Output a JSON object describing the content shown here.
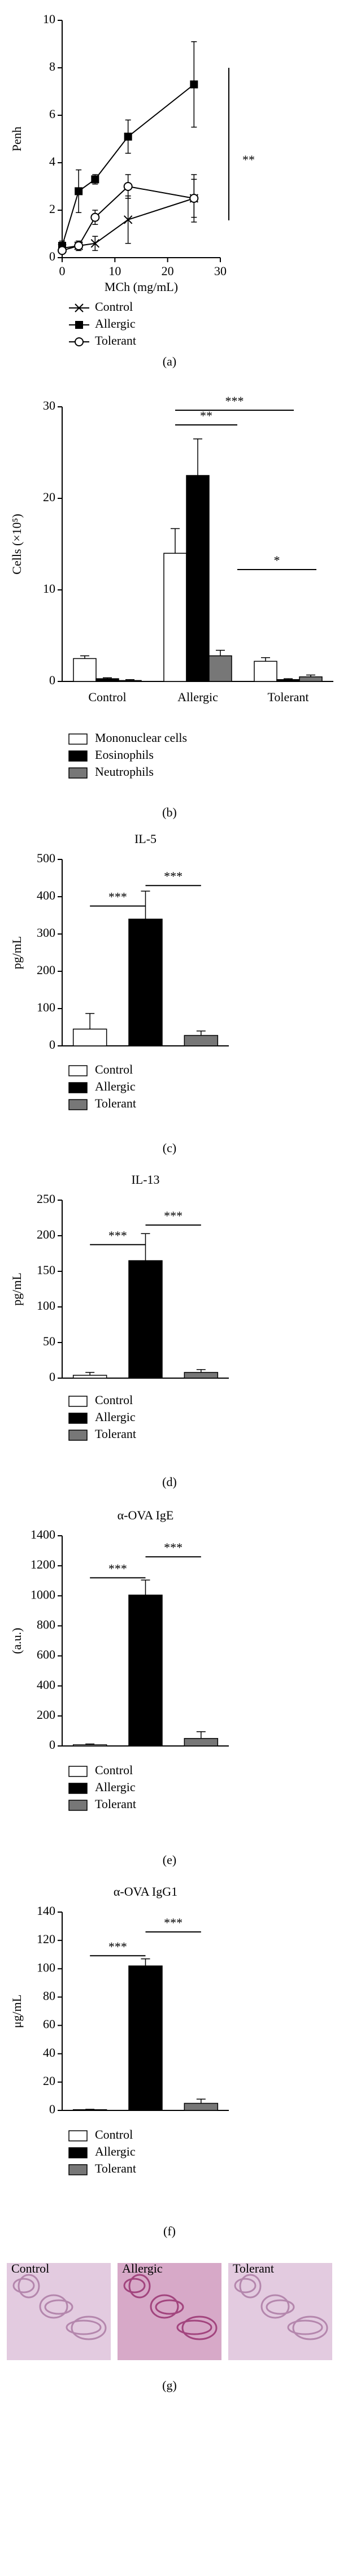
{
  "chart_data": [
    {
      "type": "line",
      "xlabel": "MCh (mg/mL)",
      "ylabel": "Penh",
      "xlim": [
        0,
        30
      ],
      "xticks": [
        0,
        10,
        20,
        30
      ],
      "ylim": [
        0,
        10
      ],
      "yticks": [
        0,
        2,
        4,
        6,
        8,
        10
      ],
      "x": [
        0,
        3.125,
        6.25,
        12.5,
        25
      ],
      "series": [
        {
          "name": "Control",
          "marker": "x",
          "color": "#000000",
          "values": [
            0.4,
            0.5,
            0.6,
            1.6,
            2.5
          ],
          "errors": [
            0.1,
            0.2,
            0.3,
            1.0,
            0.8
          ]
        },
        {
          "name": "Allergic",
          "marker": "square",
          "color": "#000000",
          "values": [
            0.5,
            2.8,
            3.3,
            5.1,
            7.3
          ],
          "errors": [
            0.2,
            0.9,
            0.2,
            0.7,
            1.8
          ]
        },
        {
          "name": "Tolerant",
          "marker": "circle",
          "color": "#000000",
          "values": [
            0.3,
            0.5,
            1.7,
            3.0,
            2.5
          ],
          "errors": [
            0.1,
            0.2,
            0.3,
            0.5,
            1.0
          ]
        }
      ],
      "annotations": [
        "**"
      ],
      "caption": "(a)"
    },
    {
      "type": "bar",
      "ylabel": "Cells (×10⁵)",
      "ylim": [
        0,
        30
      ],
      "yticks": [
        0,
        10,
        20,
        30
      ],
      "categories": [
        "Control",
        "Allergic",
        "Tolerant"
      ],
      "series": [
        {
          "name": "Mononuclear cells",
          "color": "#ffffff",
          "values": [
            2.5,
            14,
            2.2
          ],
          "errors": [
            0.3,
            2.7,
            0.4
          ]
        },
        {
          "name": "Eosinophils",
          "color": "#000000",
          "values": [
            0.3,
            22.5,
            0.2
          ],
          "errors": [
            0.1,
            4.0,
            0.1
          ]
        },
        {
          "name": "Neutrophils",
          "color": "#777777",
          "values": [
            0.1,
            2.8,
            0.5
          ],
          "errors": [
            0.1,
            0.6,
            0.2
          ]
        }
      ],
      "annotations": [
        "***",
        "**",
        "*"
      ],
      "caption": "(b)"
    },
    {
      "type": "bar",
      "title": "IL-5",
      "ylabel": "pg/mL",
      "ylim": [
        0,
        500
      ],
      "yticks": [
        0,
        100,
        200,
        300,
        400,
        500
      ],
      "categories": [
        "Control",
        "Allergic",
        "Tolerant"
      ],
      "colors": [
        "#ffffff",
        "#000000",
        "#777777"
      ],
      "values": [
        45,
        340,
        28
      ],
      "errors": [
        42,
        75,
        12
      ],
      "annotations": [
        "***",
        "***"
      ],
      "caption": "(c)"
    },
    {
      "type": "bar",
      "title": "IL-13",
      "ylabel": "pg/mL",
      "ylim": [
        0,
        250
      ],
      "yticks": [
        0,
        50,
        100,
        150,
        200,
        250
      ],
      "categories": [
        "Control",
        "Allergic",
        "Tolerant"
      ],
      "colors": [
        "#ffffff",
        "#000000",
        "#777777"
      ],
      "values": [
        4,
        165,
        8
      ],
      "errors": [
        4,
        38,
        4
      ],
      "annotations": [
        "***",
        "***"
      ],
      "caption": "(d)"
    },
    {
      "type": "bar",
      "title": "α-OVA IgE",
      "ylabel": "(a.u.)",
      "ylim": [
        0,
        1400
      ],
      "yticks": [
        0,
        200,
        400,
        600,
        800,
        1000,
        1200,
        1400
      ],
      "categories": [
        "Control",
        "Allergic",
        "Tolerant"
      ],
      "colors": [
        "#ffffff",
        "#000000",
        "#777777"
      ],
      "values": [
        8,
        1005,
        50
      ],
      "errors": [
        5,
        100,
        45
      ],
      "annotations": [
        "***",
        "***"
      ],
      "caption": "(e)"
    },
    {
      "type": "bar",
      "title": "α-OVA IgG1",
      "ylabel": "μg/mL",
      "ylim": [
        0,
        140
      ],
      "yticks": [
        0,
        20,
        40,
        60,
        80,
        100,
        120,
        140
      ],
      "categories": [
        "Control",
        "Allergic",
        "Tolerant"
      ],
      "colors": [
        "#ffffff",
        "#000000",
        "#777777"
      ],
      "values": [
        0.5,
        102,
        5
      ],
      "errors": [
        0.3,
        5,
        3
      ],
      "annotations": [
        "***",
        "***"
      ],
      "caption": "(f)"
    }
  ],
  "images": {
    "labels": [
      "Control",
      "Allergic",
      "Tolerant"
    ],
    "caption": "(g)"
  }
}
